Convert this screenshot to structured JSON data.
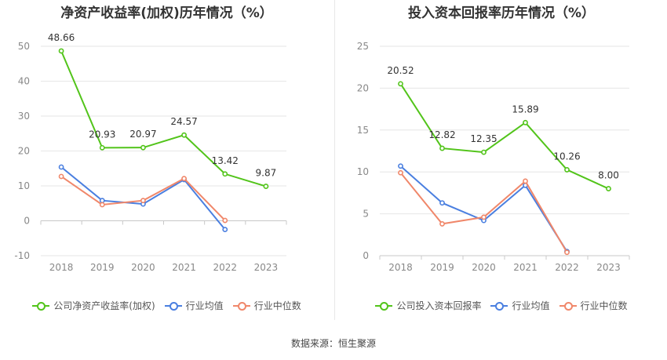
{
  "footer": {
    "source": "数据来源：恒生聚源"
  },
  "chart_data": [
    {
      "type": "line",
      "title": "净资产收益率(加权)历年情况（%）",
      "categories": [
        "2018",
        "2019",
        "2020",
        "2021",
        "2022",
        "2023"
      ],
      "ylim": [
        -10,
        50
      ],
      "yticks": [
        -10,
        0,
        10,
        20,
        30,
        40,
        50
      ],
      "grid": true,
      "legend": "bottom",
      "series": [
        {
          "name": "公司净资产收益率(加权)",
          "color": "#52c41a",
          "values": [
            48.66,
            20.93,
            20.97,
            24.57,
            13.42,
            9.87
          ],
          "labels": [
            "48.66",
            "20.93",
            "20.97",
            "24.57",
            "13.42",
            "9.87"
          ]
        },
        {
          "name": "行业均值",
          "color": "#4a7fe0",
          "values": [
            15.4,
            5.8,
            4.8,
            11.8,
            -2.5,
            null
          ]
        },
        {
          "name": "行业中位数",
          "color": "#f0876a",
          "values": [
            12.7,
            4.6,
            5.8,
            12.1,
            0.1,
            null
          ]
        }
      ]
    },
    {
      "type": "line",
      "title": "投入资本回报率历年情况（%）",
      "categories": [
        "2018",
        "2019",
        "2020",
        "2021",
        "2022",
        "2023"
      ],
      "ylim": [
        0,
        25
      ],
      "yticks": [
        0,
        5,
        10,
        15,
        20,
        25
      ],
      "grid": true,
      "legend": "bottom",
      "series": [
        {
          "name": "公司投入资本回报率",
          "color": "#52c41a",
          "values": [
            20.52,
            12.82,
            12.35,
            15.89,
            10.26,
            8.0
          ],
          "labels": [
            "20.52",
            "12.82",
            "12.35",
            "15.89",
            "10.26",
            "8.00"
          ]
        },
        {
          "name": "行业均值",
          "color": "#4a7fe0",
          "values": [
            10.7,
            6.3,
            4.2,
            8.4,
            0.5,
            null
          ]
        },
        {
          "name": "行业中位数",
          "color": "#f0876a",
          "values": [
            9.9,
            3.8,
            4.6,
            8.9,
            0.4,
            null
          ]
        }
      ]
    }
  ]
}
